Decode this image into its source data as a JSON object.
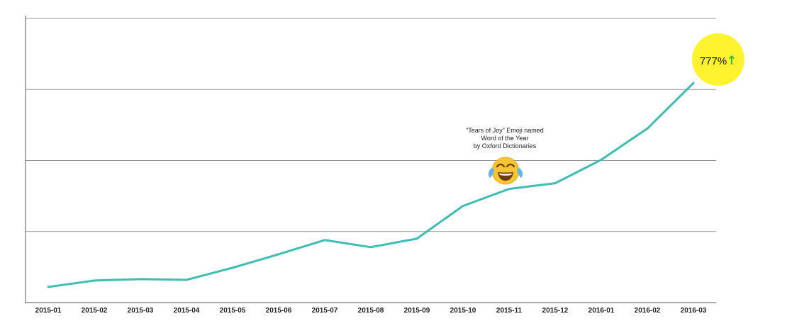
{
  "chart_data": {
    "type": "line",
    "categories": [
      "2015-01",
      "2015-02",
      "2015-03",
      "2015-04",
      "2015-05",
      "2015-06",
      "2015-07",
      "2015-08",
      "2015-09",
      "2015-10",
      "2015-11",
      "2015-12",
      "2016-01",
      "2016-02",
      "2016-03"
    ],
    "series": [
      {
        "values": [
          22,
          31,
          33,
          32,
          49,
          68,
          88,
          78,
          90,
          136,
          160,
          168,
          201,
          245,
          309
        ]
      }
    ],
    "ylim": [
      0,
      400
    ],
    "yticks": [
      0,
      100,
      200,
      300,
      400
    ],
    "grid": "horizontal",
    "title": "",
    "xlabel": "",
    "ylabel": "",
    "annotation": {
      "category": "2015-11",
      "lines": [
        "“Tears of Joy” Emoji named",
        "Word of the Year",
        "by Oxford Dictionaries"
      ],
      "emoji": "😂"
    },
    "badge": {
      "text": "777%",
      "arrow": "↑",
      "circle_color": "#fff22e",
      "arrow_color": "#2bbf3a"
    },
    "line_color": "#3dbdb4"
  }
}
